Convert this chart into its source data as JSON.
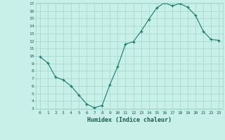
{
  "x": [
    0,
    1,
    2,
    3,
    4,
    5,
    6,
    7,
    8,
    9,
    10,
    11,
    12,
    13,
    14,
    15,
    16,
    17,
    18,
    19,
    20,
    21,
    22,
    23
  ],
  "y": [
    9.9,
    9.1,
    7.2,
    6.8,
    6.0,
    4.8,
    3.6,
    3.1,
    3.4,
    6.2,
    8.6,
    11.6,
    11.9,
    13.3,
    14.9,
    16.4,
    17.1,
    16.7,
    17.0,
    16.5,
    15.4,
    13.3,
    12.2,
    12.1
  ],
  "xlabel": "Humidex (Indice chaleur)",
  "ylim": [
    3,
    17
  ],
  "xlim": [
    -0.5,
    23.5
  ],
  "yticks": [
    3,
    4,
    5,
    6,
    7,
    8,
    9,
    10,
    11,
    12,
    13,
    14,
    15,
    16,
    17
  ],
  "xticks": [
    0,
    1,
    2,
    3,
    4,
    5,
    6,
    7,
    8,
    9,
    10,
    11,
    12,
    13,
    14,
    15,
    16,
    17,
    18,
    19,
    20,
    21,
    22,
    23
  ],
  "line_color": "#1a7a6e",
  "marker_color": "#1a7a6e",
  "bg_color": "#c8f0e8",
  "grid_color": "#a0d8cc",
  "tick_label_color": "#1a5a50",
  "xlabel_color": "#1a5a50"
}
